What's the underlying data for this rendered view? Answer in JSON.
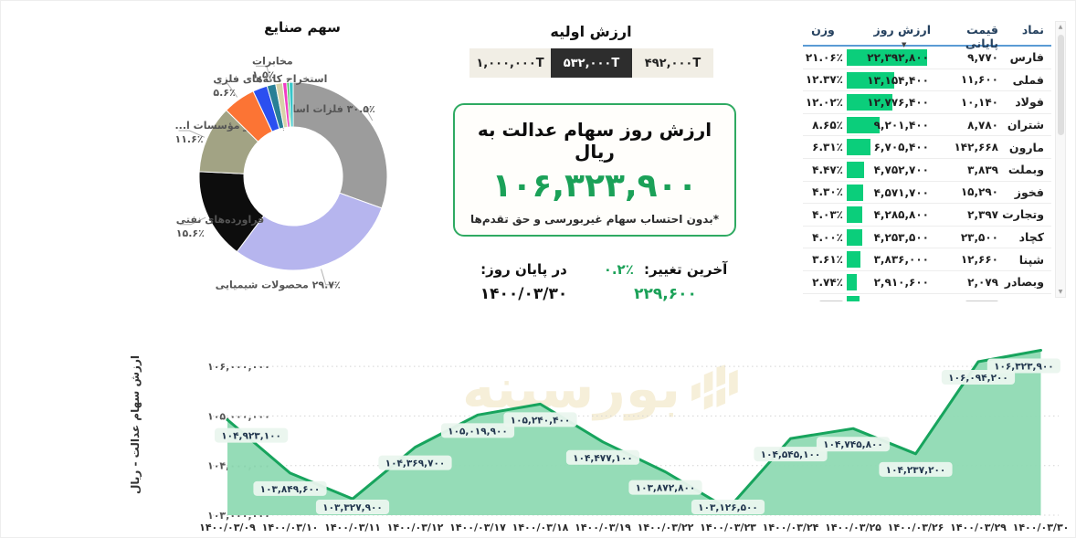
{
  "watermark": "بورسینه",
  "icons": {
    "sort_desc": "▼",
    "scroll_up": "▲",
    "scroll_down": "▼"
  },
  "colors": {
    "accent_green": "#1ba158",
    "bar_green": "#0bce7b",
    "area_line": "#17a45d",
    "area_fill": "#8fdab3",
    "pill_bg": "#eaf6ee",
    "header_underline": "#5b9bd5",
    "selected_button_bg": "#2d2d2d"
  },
  "center": {
    "initial_value_title": "ارزش اولیه",
    "buttons": [
      {
        "label": "1,000,000",
        "suffix": "T",
        "selected": false
      },
      {
        "label": "532,000",
        "suffix": "T",
        "selected": true
      },
      {
        "label": "492,000",
        "suffix": "T",
        "selected": false
      }
    ],
    "card": {
      "title": "ارزش روز سهام عدالت به ریال",
      "value": 106323900,
      "footnote": "*بدون احتساب سهام غیربورسی و حق تقدم‌ها"
    },
    "stats": {
      "last_change_label": "آخرین تغییر:",
      "last_change_pct": "0.2",
      "last_change_value": 229600,
      "end_of_day_label": "در پایان روز:",
      "end_of_day_date": "1400/03/30"
    }
  },
  "table": {
    "headers": {
      "symbol": "نماد",
      "close": "قیمت پایانی",
      "day_value": "ارزش روز",
      "weight": "وزن"
    },
    "rows": [
      {
        "symbol": "فارس",
        "close": 9770,
        "day_value": 22392800,
        "weight": 21.06
      },
      {
        "symbol": "فملی",
        "close": 11600,
        "day_value": 13154400,
        "weight": 12.37
      },
      {
        "symbol": "فولاد",
        "close": 10140,
        "day_value": 12776400,
        "weight": 12.02
      },
      {
        "symbol": "شتران",
        "close": 8780,
        "day_value": 9201400,
        "weight": 8.65
      },
      {
        "symbol": "مارون",
        "close": 142668,
        "day_value": 6705400,
        "weight": 6.31
      },
      {
        "symbol": "وبملت",
        "close": 3839,
        "day_value": 4752700,
        "weight": 4.47
      },
      {
        "symbol": "فخوز",
        "close": 15290,
        "day_value": 4571700,
        "weight": 4.3
      },
      {
        "symbol": "وتجارت",
        "close": 2397,
        "day_value": 4285800,
        "weight": 4.03
      },
      {
        "symbol": "کچاد",
        "close": 23500,
        "day_value": 4253500,
        "weight": 4.0
      },
      {
        "symbol": "شپنا",
        "close": 12660,
        "day_value": 3836000,
        "weight": 3.61
      },
      {
        "symbol": "وبصادر",
        "close": 2079,
        "day_value": 2910600,
        "weight": 2.74
      }
    ]
  },
  "chart_data": [
    {
      "type": "pie",
      "title": "سهم صنایع",
      "legend_position": "none",
      "slices": [
        {
          "name": "فلزات اساسی",
          "pct": 30.5,
          "color": "#9c9c9c",
          "labeled": true
        },
        {
          "name": "محصولات شیمیایی",
          "pct": 29.7,
          "color": "#b6b5ee",
          "labeled": true
        },
        {
          "name": "فراورده‌های نفتی",
          "pct": 15.6,
          "color": "#0d0d0d",
          "labeled": true
        },
        {
          "name": "بانک‌ها و مؤسسات ا...",
          "pct": 11.6,
          "color": "#a2a384",
          "labeled": true
        },
        {
          "name": "استخراج کانه‌های فلزی",
          "pct": 5.6,
          "color": "#fc7434",
          "labeled": true
        },
        {
          "name": "",
          "pct": 2.5,
          "color": "#2b4ff0",
          "labeled": false
        },
        {
          "name": "مخابرات",
          "pct": 1.5,
          "color": "#297f96",
          "labeled": true
        },
        {
          "name": "",
          "pct": 1.2,
          "color": "#d6d2a8",
          "labeled": false
        },
        {
          "name": "",
          "pct": 0.7,
          "color": "#f13dc4",
          "labeled": false
        },
        {
          "name": "",
          "pct": 0.4,
          "color": "#2dc653",
          "labeled": false
        },
        {
          "name": "",
          "pct": 0.7,
          "color": "#36c5c9",
          "labeled": false
        }
      ]
    },
    {
      "type": "area",
      "ylabel": "ارزش سهام عدالت - ریال",
      "grid": "dotted-horizontal",
      "dates": [
        "1400/03/09",
        "1400/03/10",
        "1400/03/11",
        "1400/03/12",
        "1400/03/17",
        "1400/03/18",
        "1400/03/19",
        "1400/03/22",
        "1400/03/23",
        "1400/03/24",
        "1400/03/25",
        "1400/03/26",
        "1400/03/29",
        "1400/03/30"
      ],
      "values": [
        104923100,
        103849600,
        103327900,
        104369700,
        105019900,
        105240400,
        104477100,
        103872800,
        103126500,
        104545100,
        104745800,
        104237200,
        106094200,
        106323900
      ],
      "yticks": [
        103000000,
        104000000,
        105000000,
        106000000
      ],
      "ylim": [
        103000000,
        106000000
      ]
    }
  ]
}
